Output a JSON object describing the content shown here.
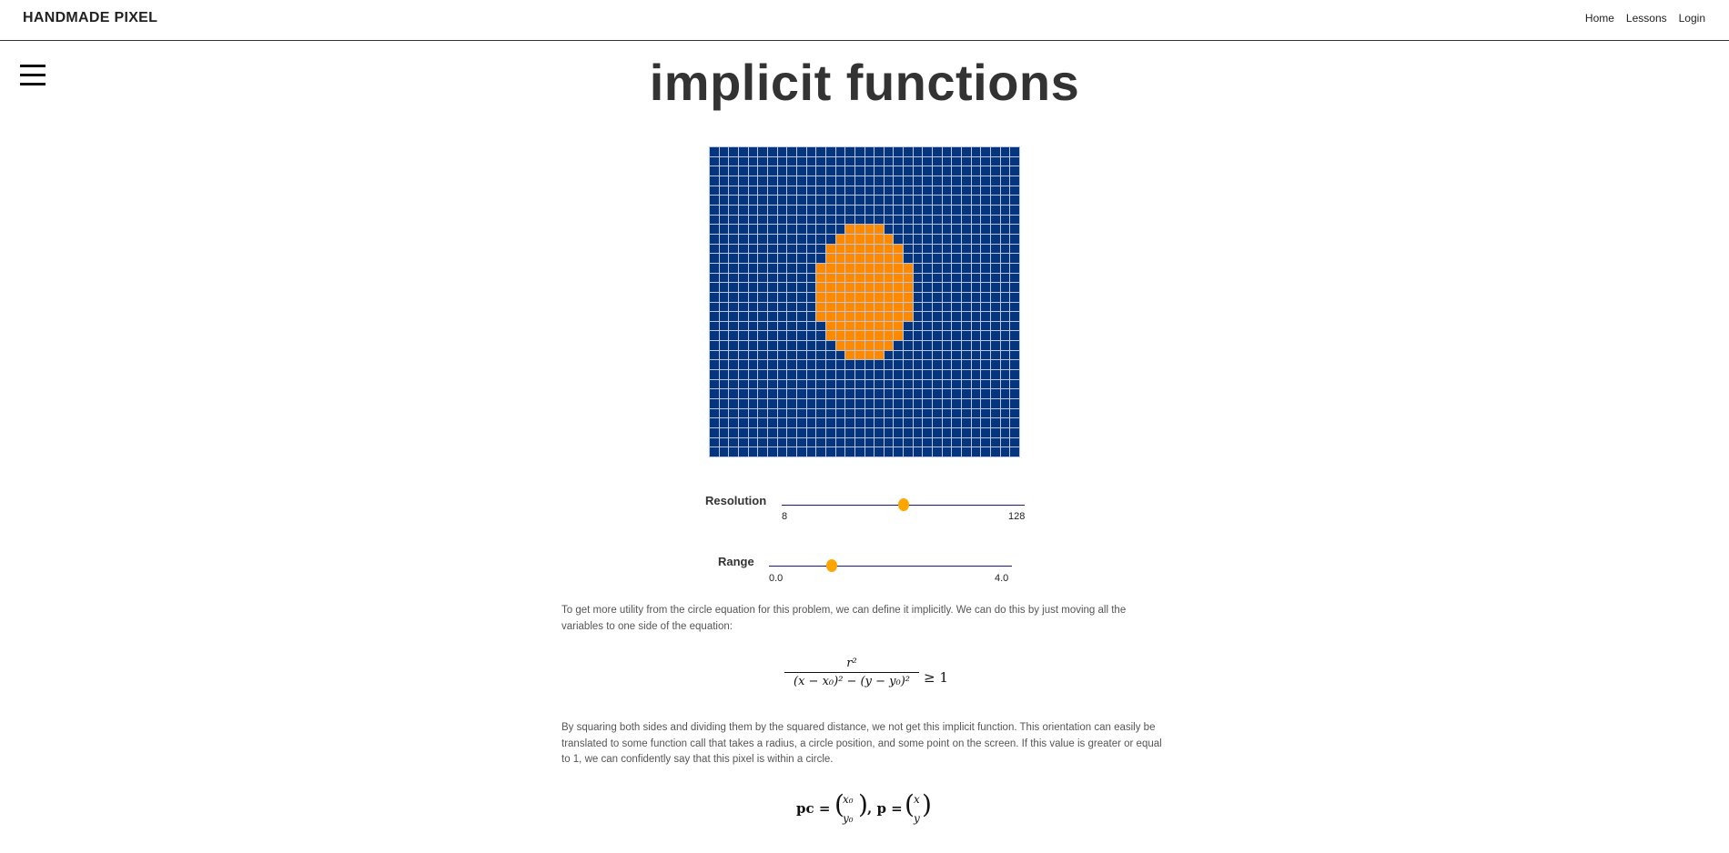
{
  "header": {
    "brand": "HANDMADE PIXEL",
    "nav": [
      "Home",
      "Lessons",
      "Login"
    ]
  },
  "page": {
    "title": "implicit functions"
  },
  "pixel_demo": {
    "grid_size": 32,
    "background_color": "#06357f",
    "fill_color": "#ff8a00",
    "grid_line_color": "#b9c6dd",
    "circle_rows": [
      [
        14,
        17
      ],
      [
        13,
        18
      ],
      [
        12,
        19
      ],
      [
        12,
        19
      ],
      [
        11,
        20
      ],
      [
        11,
        20
      ],
      [
        11,
        20
      ],
      [
        11,
        20
      ],
      [
        11,
        20
      ],
      [
        11,
        20
      ],
      [
        12,
        19
      ],
      [
        12,
        19
      ],
      [
        13,
        18
      ],
      [
        14,
        17
      ]
    ],
    "circle_first_row": 8
  },
  "controls": {
    "resolution": {
      "label": "Resolution",
      "min_label": "8",
      "max_label": "128",
      "value_fraction": 0.5
    },
    "range": {
      "label": "Range",
      "min_label": "0.0",
      "max_label": "4.0",
      "value_fraction": 0.257
    }
  },
  "content": {
    "para1": "To get more utility from the circle equation for this problem, we can define it implicitly. We can do this by just moving all the variables to one side of the equation:",
    "para2": "By squaring both sides and dividing them by the squared distance, we not get this implicit function. This orientation can easily be translated to some function call that takes a radius, a circle position, and some point on the screen. If this value is greater or equal to 1, we can confidently say that this pixel is within a circle.",
    "eq1": {
      "numerator": "r²",
      "denominator": "(x − x₀)² − (y − y₀)²",
      "relation": "≥ 1"
    },
    "eq2": {
      "pc_label": "pc =",
      "pc_top": "x₀",
      "pc_bottom": "y₀",
      "p_label": ", p =",
      "p_top": "x",
      "p_bottom": "y"
    }
  }
}
